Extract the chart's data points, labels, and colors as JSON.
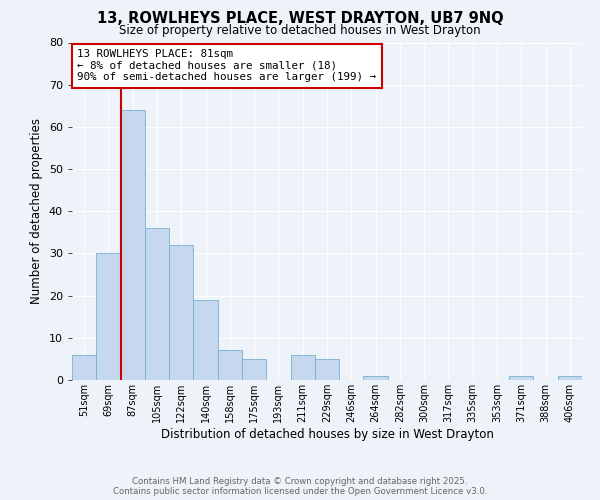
{
  "title": "13, ROWLHEYS PLACE, WEST DRAYTON, UB7 9NQ",
  "subtitle": "Size of property relative to detached houses in West Drayton",
  "xlabel": "Distribution of detached houses by size in West Drayton",
  "ylabel": "Number of detached properties",
  "bar_color": "#c5d8ed",
  "bar_edge_color": "#7aafd4",
  "categories": [
    "51sqm",
    "69sqm",
    "87sqm",
    "105sqm",
    "122sqm",
    "140sqm",
    "158sqm",
    "175sqm",
    "193sqm",
    "211sqm",
    "229sqm",
    "246sqm",
    "264sqm",
    "282sqm",
    "300sqm",
    "317sqm",
    "335sqm",
    "353sqm",
    "371sqm",
    "388sqm",
    "406sqm"
  ],
  "values": [
    6,
    30,
    64,
    36,
    32,
    19,
    7,
    5,
    0,
    6,
    5,
    0,
    1,
    0,
    0,
    0,
    0,
    0,
    1,
    0,
    1
  ],
  "vline_color": "#cc0000",
  "ylim": [
    0,
    80
  ],
  "yticks": [
    0,
    10,
    20,
    30,
    40,
    50,
    60,
    70,
    80
  ],
  "annotation_title": "13 ROWLHEYS PLACE: 81sqm",
  "annotation_line1": "← 8% of detached houses are smaller (18)",
  "annotation_line2": "90% of semi-detached houses are larger (199) →",
  "annotation_box_color": "#ffffff",
  "annotation_box_edge": "#cc0000",
  "footnote1": "Contains HM Land Registry data © Crown copyright and database right 2025.",
  "footnote2": "Contains public sector information licensed under the Open Government Licence v3.0.",
  "background_color": "#eef2f9",
  "plot_background": "#eef2f9",
  "grid_color": "#ffffff"
}
